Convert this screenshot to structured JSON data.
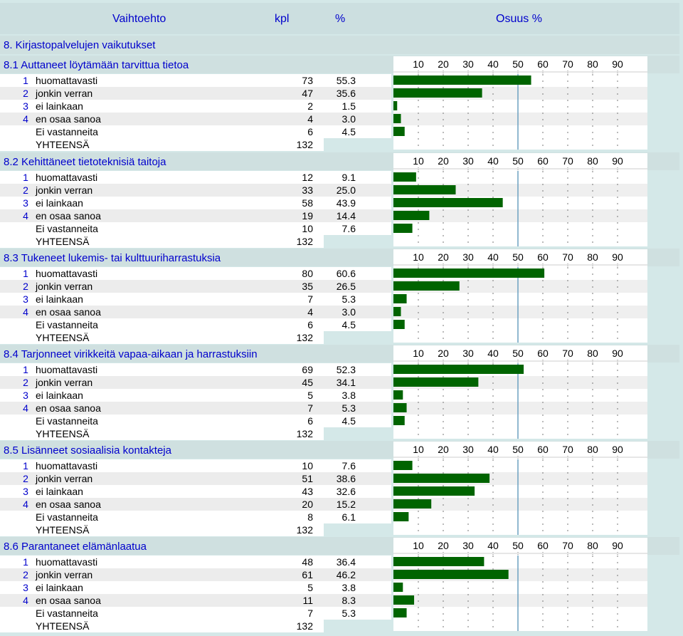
{
  "header": {
    "col_option": "Vaihtoehto",
    "col_count": "kpl",
    "col_percent": "%",
    "col_share": "Osuus %"
  },
  "main_title": "8. Kirjastopalvelujen vaikutukset",
  "axis_ticks": [
    "10",
    "20",
    "30",
    "40",
    "50",
    "60",
    "70",
    "80",
    "90"
  ],
  "colors": {
    "bar": "#006400",
    "link_text": "#0000cc",
    "header_bg": "#ccdfe0"
  },
  "sections": [
    {
      "title": "8.1 Auttaneet löytämään tarvittua tietoa",
      "rows": [
        {
          "num": "1",
          "label": "huomattavasti",
          "kpl": "73",
          "pct": "55.3"
        },
        {
          "num": "2",
          "label": "jonkin verran",
          "kpl": "47",
          "pct": "35.6"
        },
        {
          "num": "3",
          "label": "ei lainkaan",
          "kpl": "2",
          "pct": "1.5"
        },
        {
          "num": "4",
          "label": "en osaa sanoa",
          "kpl": "4",
          "pct": "3.0"
        },
        {
          "num": "",
          "label": "Ei vastanneita",
          "kpl": "6",
          "pct": "4.5"
        }
      ],
      "total_label": "YHTEENSÄ",
      "total": "132"
    },
    {
      "title": "8.2 Kehittäneet tietoteknisiä taitoja",
      "rows": [
        {
          "num": "1",
          "label": "huomattavasti",
          "kpl": "12",
          "pct": "9.1"
        },
        {
          "num": "2",
          "label": "jonkin verran",
          "kpl": "33",
          "pct": "25.0"
        },
        {
          "num": "3",
          "label": "ei lainkaan",
          "kpl": "58",
          "pct": "43.9"
        },
        {
          "num": "4",
          "label": "en osaa sanoa",
          "kpl": "19",
          "pct": "14.4"
        },
        {
          "num": "",
          "label": "Ei vastanneita",
          "kpl": "10",
          "pct": "7.6"
        }
      ],
      "total_label": "YHTEENSÄ",
      "total": "132"
    },
    {
      "title": "8.3 Tukeneet lukemis- tai kulttuuriharrastuksia",
      "rows": [
        {
          "num": "1",
          "label": "huomattavasti",
          "kpl": "80",
          "pct": "60.6"
        },
        {
          "num": "2",
          "label": "jonkin verran",
          "kpl": "35",
          "pct": "26.5"
        },
        {
          "num": "3",
          "label": "ei lainkaan",
          "kpl": "7",
          "pct": "5.3"
        },
        {
          "num": "4",
          "label": "en osaa sanoa",
          "kpl": "4",
          "pct": "3.0"
        },
        {
          "num": "",
          "label": "Ei vastanneita",
          "kpl": "6",
          "pct": "4.5"
        }
      ],
      "total_label": "YHTEENSÄ",
      "total": "132"
    },
    {
      "title": "8.4 Tarjonneet virikkeitä vapaa-aikaan ja harrastuksiin",
      "rows": [
        {
          "num": "1",
          "label": "huomattavasti",
          "kpl": "69",
          "pct": "52.3"
        },
        {
          "num": "2",
          "label": "jonkin verran",
          "kpl": "45",
          "pct": "34.1"
        },
        {
          "num": "3",
          "label": "ei lainkaan",
          "kpl": "5",
          "pct": "3.8"
        },
        {
          "num": "4",
          "label": "en osaa sanoa",
          "kpl": "7",
          "pct": "5.3"
        },
        {
          "num": "",
          "label": "Ei vastanneita",
          "kpl": "6",
          "pct": "4.5"
        }
      ],
      "total_label": "YHTEENSÄ",
      "total": "132"
    },
    {
      "title": "8.5 Lisänneet sosiaalisia kontakteja",
      "rows": [
        {
          "num": "1",
          "label": "huomattavasti",
          "kpl": "10",
          "pct": "7.6"
        },
        {
          "num": "2",
          "label": "jonkin verran",
          "kpl": "51",
          "pct": "38.6"
        },
        {
          "num": "3",
          "label": "ei lainkaan",
          "kpl": "43",
          "pct": "32.6"
        },
        {
          "num": "4",
          "label": "en osaa sanoa",
          "kpl": "20",
          "pct": "15.2"
        },
        {
          "num": "",
          "label": "Ei vastanneita",
          "kpl": "8",
          "pct": "6.1"
        }
      ],
      "total_label": "YHTEENSÄ",
      "total": "132"
    },
    {
      "title": "8.6 Parantaneet elämänlaatua",
      "rows": [
        {
          "num": "1",
          "label": "huomattavasti",
          "kpl": "48",
          "pct": "36.4"
        },
        {
          "num": "2",
          "label": "jonkin verran",
          "kpl": "61",
          "pct": "46.2"
        },
        {
          "num": "3",
          "label": "ei lainkaan",
          "kpl": "5",
          "pct": "3.8"
        },
        {
          "num": "4",
          "label": "en osaa sanoa",
          "kpl": "11",
          "pct": "8.3"
        },
        {
          "num": "",
          "label": "Ei vastanneita",
          "kpl": "7",
          "pct": "5.3"
        }
      ],
      "total_label": "YHTEENSÄ",
      "total": "132"
    }
  ],
  "chart_data": {
    "type": "bar",
    "orientation": "horizontal",
    "xlim": [
      0,
      100
    ],
    "x_ticks": [
      10,
      20,
      30,
      40,
      50,
      60,
      70,
      80,
      90
    ],
    "groups": [
      {
        "title": "8.1 Auttaneet löytämään tarvittua tietoa",
        "categories": [
          "huomattavasti",
          "jonkin verran",
          "ei lainkaan",
          "en osaa sanoa",
          "Ei vastanneita"
        ],
        "values": [
          55.3,
          35.6,
          1.5,
          3.0,
          4.5
        ]
      },
      {
        "title": "8.2 Kehittäneet tietoteknisiä taitoja",
        "categories": [
          "huomattavasti",
          "jonkin verran",
          "ei lainkaan",
          "en osaa sanoa",
          "Ei vastanneita"
        ],
        "values": [
          9.1,
          25.0,
          43.9,
          14.4,
          7.6
        ]
      },
      {
        "title": "8.3 Tukeneet lukemis- tai kulttuuriharrastuksia",
        "categories": [
          "huomattavasti",
          "jonkin verran",
          "ei lainkaan",
          "en osaa sanoa",
          "Ei vastanneita"
        ],
        "values": [
          60.6,
          26.5,
          5.3,
          3.0,
          4.5
        ]
      },
      {
        "title": "8.4 Tarjonneet virikkeitä vapaa-aikaan ja harrastuksiin",
        "categories": [
          "huomattavasti",
          "jonkin verran",
          "ei lainkaan",
          "en osaa sanoa",
          "Ei vastanneita"
        ],
        "values": [
          52.3,
          34.1,
          3.8,
          5.3,
          4.5
        ]
      },
      {
        "title": "8.5 Lisänneet sosiaalisia kontakteja",
        "categories": [
          "huomattavasti",
          "jonkin verran",
          "ei lainkaan",
          "en osaa sanoa",
          "Ei vastanneita"
        ],
        "values": [
          7.6,
          38.6,
          32.6,
          15.2,
          6.1
        ]
      },
      {
        "title": "8.6 Parantaneet elämänlaatua",
        "categories": [
          "huomattavasti",
          "jonkin verran",
          "ei lainkaan",
          "en osaa sanoa",
          "Ei vastanneita"
        ],
        "values": [
          36.4,
          46.2,
          3.8,
          8.3,
          5.3
        ]
      }
    ]
  }
}
